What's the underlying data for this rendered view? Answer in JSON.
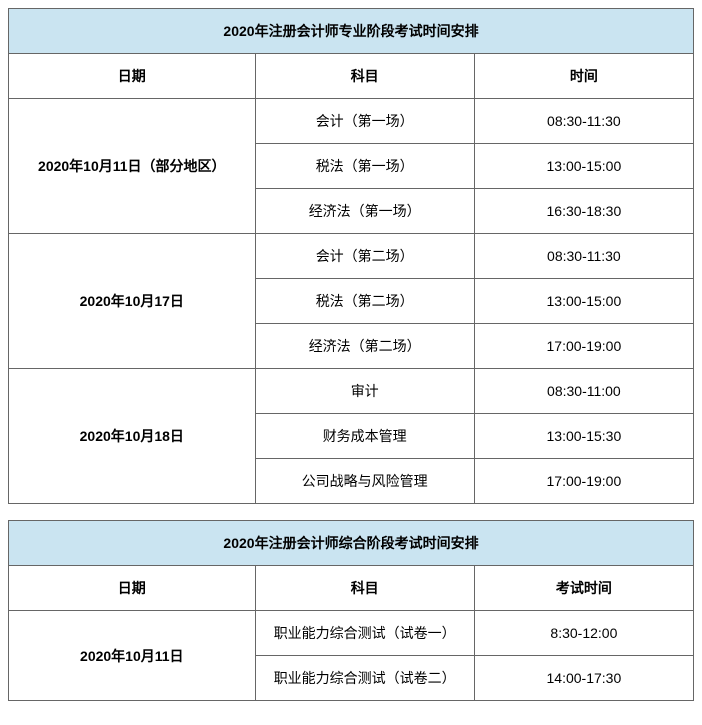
{
  "table1": {
    "title": "2020年注册会计师专业阶段考试时间安排",
    "headers": {
      "date": "日期",
      "subject": "科目",
      "time": "时间"
    },
    "groups": [
      {
        "date": "2020年10月11日（部分地区）",
        "rows": [
          {
            "subject": "会计（第一场）",
            "time": "08:30-11:30"
          },
          {
            "subject": "税法（第一场）",
            "time": "13:00-15:00"
          },
          {
            "subject": "经济法（第一场）",
            "time": "16:30-18:30"
          }
        ]
      },
      {
        "date": "2020年10月17日",
        "rows": [
          {
            "subject": "会计（第二场）",
            "time": "08:30-11:30"
          },
          {
            "subject": "税法（第二场）",
            "time": "13:00-15:00"
          },
          {
            "subject": "经济法（第二场）",
            "time": "17:00-19:00"
          }
        ]
      },
      {
        "date": "2020年10月18日",
        "rows": [
          {
            "subject": "审计",
            "time": "08:30-11:00"
          },
          {
            "subject": "财务成本管理",
            "time": "13:00-15:30"
          },
          {
            "subject": "公司战略与风险管理",
            "time": "17:00-19:00"
          }
        ]
      }
    ]
  },
  "table2": {
    "title": "2020年注册会计师综合阶段考试时间安排",
    "headers": {
      "date": "日期",
      "subject": "科目",
      "time": "考试时间"
    },
    "groups": [
      {
        "date": "2020年10月11日",
        "rows": [
          {
            "subject": "职业能力综合测试（试卷一）",
            "time": "8:30-12:00"
          },
          {
            "subject": "职业能力综合测试（试卷二）",
            "time": "14:00-17:30"
          }
        ]
      }
    ]
  },
  "colors": {
    "title_bg": "#cae4f1",
    "border": "#666666",
    "text": "#000000",
    "background": "#ffffff"
  }
}
